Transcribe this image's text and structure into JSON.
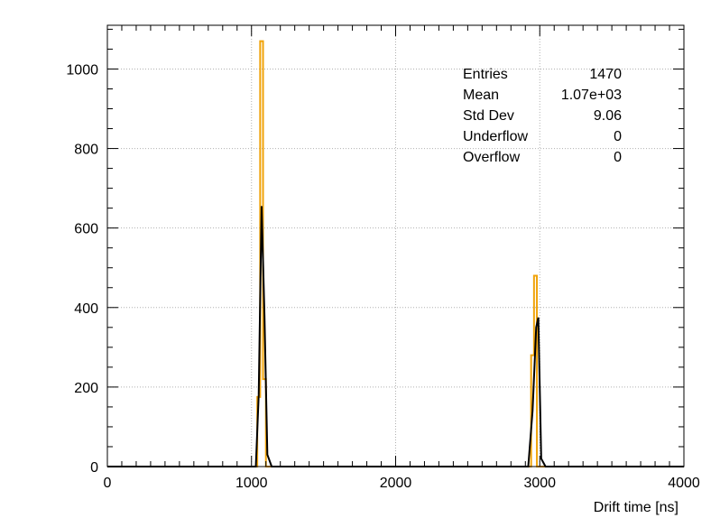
{
  "chart_data": {
    "type": "line",
    "title": "",
    "xlabel": "Drift time [ns]",
    "ylabel": "",
    "xlim": [
      0,
      4000
    ],
    "ylim": [
      0,
      1110
    ],
    "grid": true,
    "x_ticks": [
      0,
      1000,
      2000,
      3000,
      4000
    ],
    "y_ticks": [
      0,
      200,
      400,
      600,
      800,
      1000
    ],
    "x_tick_labels": [
      "0",
      "1000",
      "2000",
      "3000",
      "4000"
    ],
    "y_tick_labels": [
      "0",
      "200",
      "400",
      "600",
      "800",
      "1000"
    ],
    "series": [
      {
        "style": "step",
        "color": "#f0a30a",
        "x": [
          0,
          1040,
          1060,
          1080,
          1100,
          1120,
          2920,
          2940,
          2960,
          2980,
          3000,
          3020,
          4000
        ],
        "values": [
          0,
          175,
          1070,
          220,
          0,
          0,
          0,
          280,
          480,
          0,
          0,
          0,
          0
        ]
      },
      {
        "style": "line",
        "color": "#000000",
        "x": [
          0,
          1030,
          1050,
          1070,
          1090,
          1110,
          1140,
          2920,
          2950,
          2975,
          2990,
          3010,
          3040,
          4000
        ],
        "values": [
          0,
          0,
          180,
          655,
          380,
          30,
          0,
          0,
          140,
          350,
          375,
          20,
          0,
          0
        ]
      }
    ],
    "stats": {
      "rows": [
        {
          "label": "Entries",
          "value": "1470"
        },
        {
          "label": "Mean",
          "value": "1.07e+03"
        },
        {
          "label": "Std Dev",
          "value": "9.06"
        },
        {
          "label": "Underflow",
          "value": "0"
        },
        {
          "label": "Overflow",
          "value": "0"
        }
      ]
    }
  }
}
